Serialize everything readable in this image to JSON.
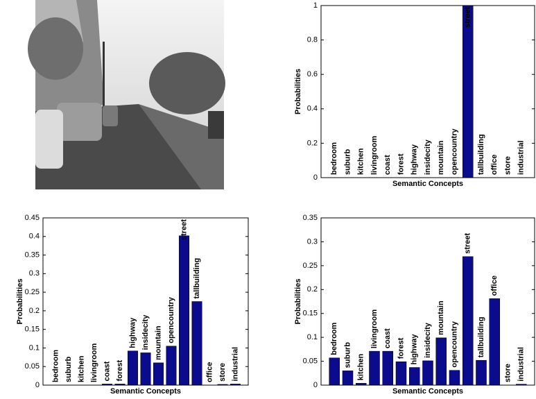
{
  "chart_data": [
    {
      "type": "bar",
      "xlabel": "Semantic Concepts",
      "ylabel": "Probabilities",
      "categories": [
        "bedroom",
        "suburb",
        "kitchen",
        "livingroom",
        "coast",
        "forest",
        "highway",
        "insidecity",
        "mountain",
        "opencountry",
        "street",
        "tallbuilding",
        "office",
        "store",
        "industrial"
      ],
      "values": [
        0,
        0,
        0,
        0,
        0,
        0,
        0,
        0,
        0,
        0,
        1,
        0,
        0,
        0,
        0
      ],
      "color": "#0b0b8e",
      "ylim": [
        0,
        1
      ],
      "yticks": [
        0,
        0.2,
        0.4,
        0.6,
        0.8,
        1
      ]
    },
    {
      "type": "bar",
      "xlabel": "Semantic Concepts",
      "ylabel": "Probabilities",
      "categories": [
        "bedroom",
        "suburb",
        "kitchen",
        "livingroom",
        "coast",
        "forest",
        "highway",
        "insidecity",
        "mountain",
        "opencountry",
        "street",
        "tallbuilding",
        "office",
        "store",
        "industrial"
      ],
      "values": [
        0,
        0,
        0,
        0,
        0.003,
        0.003,
        0.092,
        0.087,
        0.06,
        0.105,
        0.402,
        0.225,
        0,
        0.002,
        0.003
      ],
      "color": "#0b0b8e",
      "ylim": [
        0,
        0.45
      ],
      "yticks": [
        0,
        0.05,
        0.1,
        0.15,
        0.2,
        0.25,
        0.3,
        0.35,
        0.4,
        0.45
      ]
    },
    {
      "type": "bar",
      "xlabel": "Semantic Concepts",
      "ylabel": "Probabilities",
      "categories": [
        "bedroom",
        "suburb",
        "kitchen",
        "livingroom",
        "coast",
        "forest",
        "highway",
        "insidecity",
        "mountain",
        "opencountry",
        "street",
        "tallbuilding",
        "office",
        "store",
        "industrial"
      ],
      "values": [
        0.057,
        0.03,
        0.004,
        0.071,
        0.071,
        0.049,
        0.037,
        0.051,
        0.099,
        0.031,
        0.269,
        0.052,
        0.181,
        0,
        0.002
      ],
      "color": "#0b0b8e",
      "ylim": [
        0,
        0.35
      ],
      "yticks": [
        0,
        0.05,
        0.1,
        0.15,
        0.2,
        0.25,
        0.3,
        0.35
      ]
    }
  ]
}
